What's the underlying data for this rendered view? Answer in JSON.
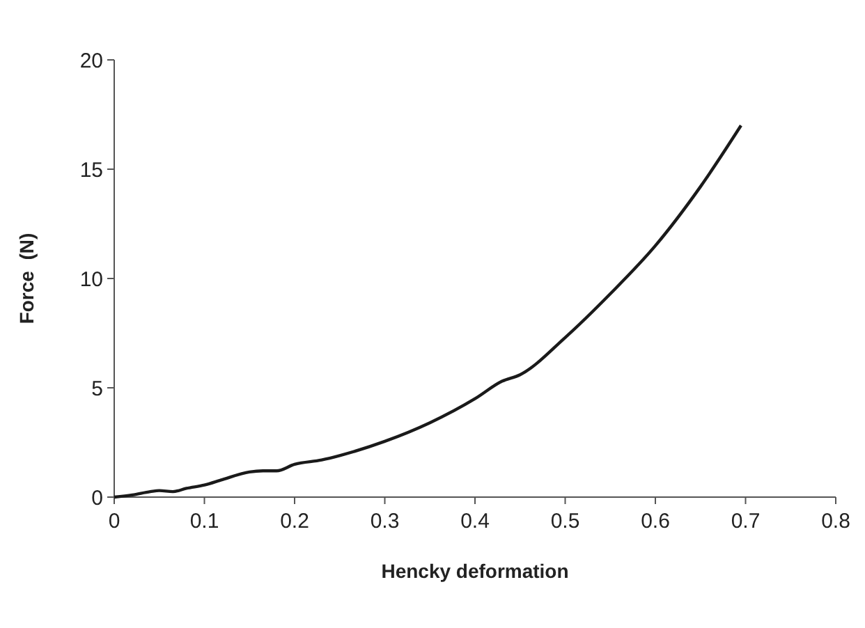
{
  "chart_data": {
    "type": "line",
    "xlabel": "Hencky deformation",
    "ylabel": "Force  (N)",
    "x": [
      0,
      0.02,
      0.04,
      0.05,
      0.065,
      0.08,
      0.1,
      0.12,
      0.15,
      0.165,
      0.18,
      0.2,
      0.23,
      0.25,
      0.3,
      0.35,
      0.4,
      0.43,
      0.45,
      0.5,
      0.55,
      0.6,
      0.65,
      0.695
    ],
    "series": [
      {
        "color": "#1a1a1a",
        "values": [
          0,
          0.1,
          0.25,
          0.3,
          0.25,
          0.4,
          0.55,
          0.8,
          1.15,
          1.2,
          1.2,
          1.5,
          1.7,
          1.9,
          2.55,
          3.4,
          4.5,
          5.3,
          5.6,
          7.3,
          9.3,
          11.5,
          14.2,
          17
        ]
      }
    ],
    "xlim": [
      0,
      0.8
    ],
    "ylim": [
      0,
      20
    ],
    "xticks": [
      0,
      0.1,
      0.2,
      0.3,
      0.4,
      0.5,
      0.6,
      0.7,
      0.8
    ],
    "yticks": [
      0,
      5,
      10,
      15,
      20
    ],
    "grid": false,
    "marker": "none",
    "line_style": "solid"
  }
}
